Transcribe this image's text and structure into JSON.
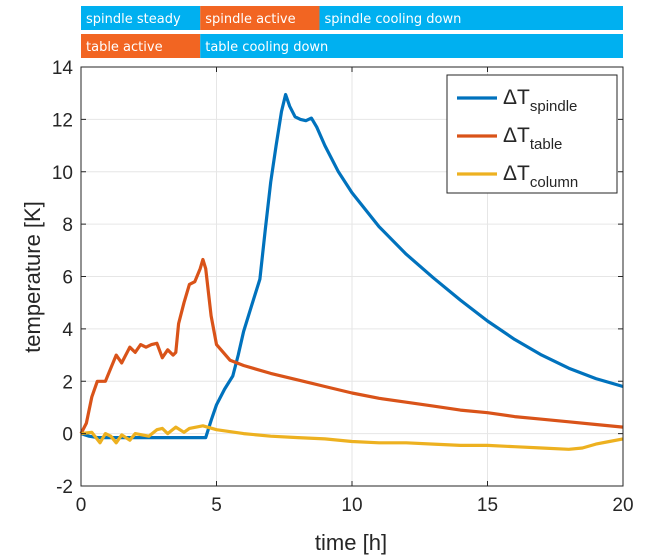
{
  "chart_data": {
    "type": "line",
    "xlabel": "time [h]",
    "ylabel": "temperature [K]",
    "xlim": [
      0,
      20
    ],
    "ylim": [
      -2,
      14
    ],
    "xticks": [
      0,
      5,
      10,
      15,
      20
    ],
    "yticks": [
      -2,
      0,
      2,
      4,
      6,
      8,
      10,
      12,
      14
    ],
    "grid": true,
    "legend_position": "top-right",
    "phase_bars": [
      {
        "row": "spindle",
        "segments": [
          {
            "label": "spindle steady",
            "start": 0,
            "end": 4.4,
            "color": "#00b0f0"
          },
          {
            "label": "spindle active",
            "start": 4.4,
            "end": 8.8,
            "color": "#f26522"
          },
          {
            "label": "spindle cooling down",
            "start": 8.8,
            "end": 20,
            "color": "#00b0f0"
          }
        ]
      },
      {
        "row": "table",
        "segments": [
          {
            "label": "table active",
            "start": 0,
            "end": 4.4,
            "color": "#f26522"
          },
          {
            "label": "table cooling down",
            "start": 4.4,
            "end": 20,
            "color": "#00b0f0"
          }
        ]
      }
    ],
    "series": [
      {
        "name_main": "ΔT",
        "name_sub": "spindle",
        "color": "#0072bd",
        "points": [
          [
            0,
            0
          ],
          [
            0.3,
            -0.1
          ],
          [
            0.6,
            -0.15
          ],
          [
            1,
            -0.15
          ],
          [
            2,
            -0.15
          ],
          [
            3,
            -0.15
          ],
          [
            4,
            -0.15
          ],
          [
            4.6,
            -0.15
          ],
          [
            4.8,
            0.5
          ],
          [
            5.0,
            1.1
          ],
          [
            5.3,
            1.7
          ],
          [
            5.6,
            2.2
          ],
          [
            5.8,
            3.0
          ],
          [
            6.0,
            3.9
          ],
          [
            6.3,
            4.9
          ],
          [
            6.6,
            5.9
          ],
          [
            6.8,
            7.8
          ],
          [
            7.0,
            9.6
          ],
          [
            7.2,
            11.0
          ],
          [
            7.4,
            12.3
          ],
          [
            7.55,
            12.95
          ],
          [
            7.7,
            12.5
          ],
          [
            7.9,
            12.1
          ],
          [
            8.1,
            12.0
          ],
          [
            8.3,
            11.95
          ],
          [
            8.5,
            12.05
          ],
          [
            8.7,
            11.7
          ],
          [
            9.0,
            11.0
          ],
          [
            9.5,
            10.0
          ],
          [
            10,
            9.2
          ],
          [
            11,
            7.9
          ],
          [
            12,
            6.85
          ],
          [
            13,
            5.95
          ],
          [
            14,
            5.1
          ],
          [
            15,
            4.3
          ],
          [
            16,
            3.6
          ],
          [
            17,
            3.0
          ],
          [
            18,
            2.5
          ],
          [
            19,
            2.1
          ],
          [
            20,
            1.8
          ]
        ]
      },
      {
        "name_main": "ΔT",
        "name_sub": "table",
        "color": "#d95319",
        "points": [
          [
            0,
            0
          ],
          [
            0.2,
            0.4
          ],
          [
            0.4,
            1.4
          ],
          [
            0.6,
            2.0
          ],
          [
            0.9,
            2.0
          ],
          [
            1.1,
            2.5
          ],
          [
            1.3,
            3.0
          ],
          [
            1.5,
            2.7
          ],
          [
            1.8,
            3.3
          ],
          [
            2.0,
            3.1
          ],
          [
            2.2,
            3.4
          ],
          [
            2.4,
            3.3
          ],
          [
            2.6,
            3.4
          ],
          [
            2.8,
            3.45
          ],
          [
            3.0,
            2.9
          ],
          [
            3.2,
            3.2
          ],
          [
            3.4,
            3.0
          ],
          [
            3.5,
            3.1
          ],
          [
            3.6,
            4.2
          ],
          [
            3.8,
            5.0
          ],
          [
            4.0,
            5.7
          ],
          [
            4.2,
            5.8
          ],
          [
            4.4,
            6.3
          ],
          [
            4.5,
            6.65
          ],
          [
            4.6,
            6.3
          ],
          [
            4.8,
            4.5
          ],
          [
            5.0,
            3.4
          ],
          [
            5.5,
            2.8
          ],
          [
            6,
            2.6
          ],
          [
            7,
            2.3
          ],
          [
            8,
            2.05
          ],
          [
            9,
            1.8
          ],
          [
            10,
            1.55
          ],
          [
            11,
            1.35
          ],
          [
            12,
            1.2
          ],
          [
            13,
            1.05
          ],
          [
            14,
            0.9
          ],
          [
            15,
            0.8
          ],
          [
            16,
            0.65
          ],
          [
            17,
            0.55
          ],
          [
            18,
            0.45
          ],
          [
            19,
            0.35
          ],
          [
            20,
            0.25
          ]
        ]
      },
      {
        "name_main": "ΔT",
        "name_sub": "column",
        "color": "#edb120",
        "points": [
          [
            0,
            0
          ],
          [
            0.4,
            0.05
          ],
          [
            0.7,
            -0.35
          ],
          [
            0.9,
            0.0
          ],
          [
            1.1,
            -0.1
          ],
          [
            1.3,
            -0.35
          ],
          [
            1.5,
            -0.05
          ],
          [
            1.8,
            -0.25
          ],
          [
            2.0,
            0.0
          ],
          [
            2.5,
            -0.1
          ],
          [
            2.8,
            0.15
          ],
          [
            3.0,
            0.2
          ],
          [
            3.2,
            0.0
          ],
          [
            3.5,
            0.25
          ],
          [
            3.8,
            0.05
          ],
          [
            4.0,
            0.2
          ],
          [
            4.5,
            0.3
          ],
          [
            5.0,
            0.15
          ],
          [
            6,
            0.0
          ],
          [
            7,
            -0.1
          ],
          [
            8,
            -0.15
          ],
          [
            9,
            -0.2
          ],
          [
            10,
            -0.3
          ],
          [
            11,
            -0.35
          ],
          [
            12,
            -0.35
          ],
          [
            13,
            -0.4
          ],
          [
            14,
            -0.45
          ],
          [
            15,
            -0.45
          ],
          [
            16,
            -0.5
          ],
          [
            17,
            -0.55
          ],
          [
            18,
            -0.6
          ],
          [
            18.5,
            -0.55
          ],
          [
            19,
            -0.4
          ],
          [
            19.5,
            -0.3
          ],
          [
            20,
            -0.2
          ]
        ]
      }
    ]
  }
}
